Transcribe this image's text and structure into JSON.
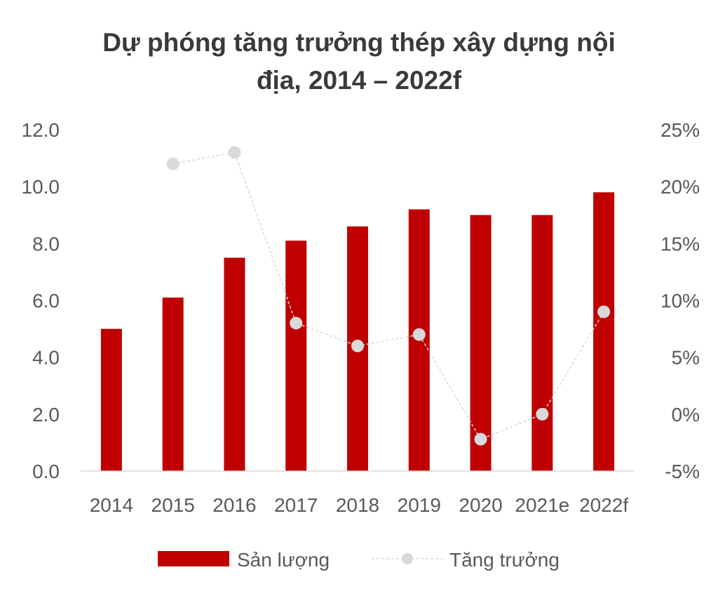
{
  "chart_data": {
    "type": "bar",
    "title_line1": "Dự phóng tăng trưởng thép xây dựng nội",
    "title_line2": "địa, 2014 – 2022f",
    "categories": [
      "2014",
      "2015",
      "2016",
      "2017",
      "2018",
      "2019",
      "2020",
      "2021e",
      "2022f"
    ],
    "series": [
      {
        "name": "Sản lượng",
        "type": "bar",
        "axis": "left",
        "color": "#C00000",
        "values": [
          5.0,
          6.1,
          7.5,
          8.1,
          8.6,
          9.2,
          9.0,
          9.0,
          9.8
        ]
      },
      {
        "name": "Tăng trưởng",
        "type": "line",
        "axis": "right",
        "color": "#D9D9D9",
        "line_style": "dashed",
        "marker": "circle",
        "values": [
          null,
          22.0,
          23.0,
          8.0,
          6.0,
          7.0,
          -2.2,
          0.0,
          9.0
        ]
      }
    ],
    "left_axis": {
      "min": 0,
      "max": 12,
      "step": 2,
      "tick_labels": [
        "0.0",
        "2.0",
        "4.0",
        "6.0",
        "8.0",
        "10.0",
        "12.0"
      ]
    },
    "right_axis": {
      "min": -5,
      "max": 25,
      "step": 5,
      "tick_labels": [
        "-5%",
        "0%",
        "5%",
        "10%",
        "15%",
        "20%",
        "25%"
      ]
    },
    "grid": false,
    "legend_position": "bottom"
  }
}
